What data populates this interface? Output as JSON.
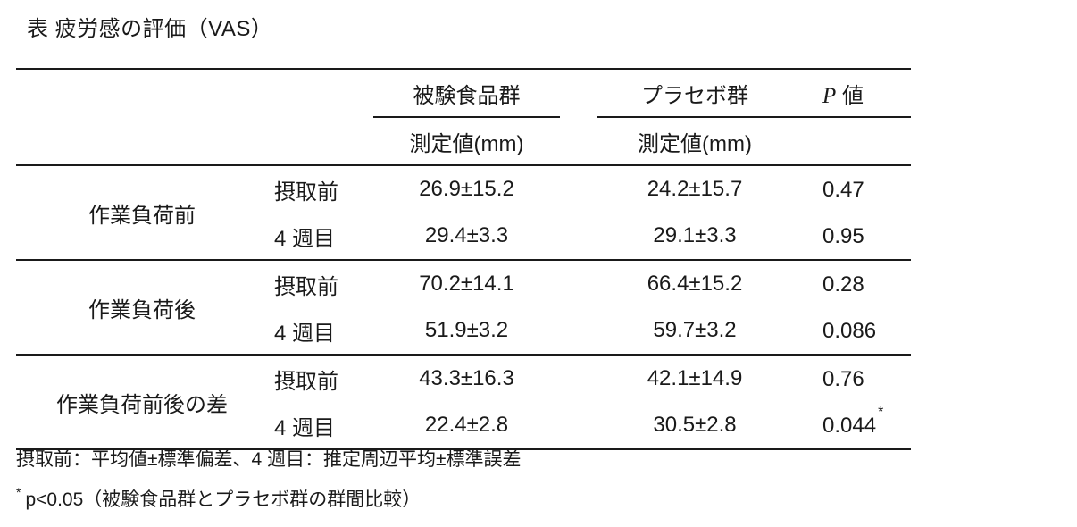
{
  "title": "表 疲労感の評価（VAS）",
  "table": {
    "col_groups": [
      {
        "label": "被験食品群",
        "sub": "測定値(mm)"
      },
      {
        "label": "プラセボ群",
        "sub": "測定値(mm)"
      },
      {
        "p_italic": "P",
        "p_rest": " 値"
      }
    ],
    "sections": [
      {
        "label": "作業負荷前",
        "rows": [
          {
            "time": "摂取前",
            "test": "26.9±15.2",
            "placebo": "24.2±15.7",
            "p": "0.47",
            "p_mark": ""
          },
          {
            "time": "4 週目",
            "test": "29.4±3.3",
            "placebo": "29.1±3.3",
            "p": "0.95",
            "p_mark": ""
          }
        ]
      },
      {
        "label": "作業負荷後",
        "rows": [
          {
            "time": "摂取前",
            "test": "70.2±14.1",
            "placebo": "66.4±15.2",
            "p": "0.28",
            "p_mark": ""
          },
          {
            "time": "4 週目",
            "test": "51.9±3.2",
            "placebo": "59.7±3.2",
            "p": "0.086",
            "p_mark": ""
          }
        ]
      },
      {
        "label": "作業負荷前後の差",
        "rows": [
          {
            "time": "摂取前",
            "test": "43.3±16.3",
            "placebo": "42.1±14.9",
            "p": "0.76",
            "p_mark": ""
          },
          {
            "time": "4 週目",
            "test": "22.4±2.8",
            "placebo": "30.5±2.8",
            "p": "0.044",
            "p_mark": "*"
          }
        ]
      }
    ]
  },
  "footnotes": {
    "note1": "摂取前：平均値±標準偏差、4 週目：推定周辺平均±標準誤差",
    "note2_marker": "*",
    "note2": "p<0.05（被験食品群とプラセボ群の群間比較）"
  },
  "colors": {
    "text": "#1a1a1a",
    "rule": "#1a1a1a",
    "background": "#ffffff"
  }
}
